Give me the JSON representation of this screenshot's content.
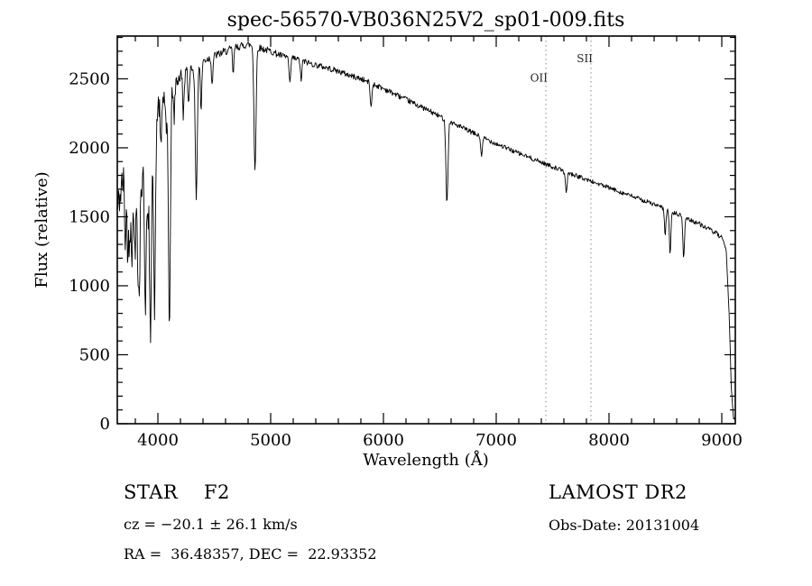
{
  "title": "spec-56570-VB036N25V2_sp01-009.fits",
  "chart_data": {
    "type": "line",
    "title": "spec-56570-VB036N25V2_sp01-009.fits",
    "xlabel": "Wavelength (Å)",
    "ylabel": "Flux (relative)",
    "xlim": [
      3640,
      9120
    ],
    "ylim": [
      0,
      2810
    ],
    "x_major_ticks": [
      4000,
      5000,
      6000,
      7000,
      8000,
      9000
    ],
    "x_minor_step": 200,
    "y_major_ticks": [
      0,
      500,
      1000,
      1500,
      2000,
      2500
    ],
    "y_minor_step": 100,
    "line_color": "#000000",
    "grid": false,
    "markers": [
      {
        "label": "OII",
        "wavelength": 7440,
        "label_flux": 2480
      },
      {
        "label": "SII",
        "wavelength": 7840,
        "label_flux": 2620
      }
    ],
    "continuum": [
      [
        3640,
        1550
      ],
      [
        3700,
        1800
      ],
      [
        3760,
        1950
      ],
      [
        3820,
        2060
      ],
      [
        3880,
        2130
      ],
      [
        3940,
        2190
      ],
      [
        4000,
        2300
      ],
      [
        4060,
        2370
      ],
      [
        4120,
        2440
      ],
      [
        4200,
        2520
      ],
      [
        4300,
        2580
      ],
      [
        4400,
        2630
      ],
      [
        4500,
        2665
      ],
      [
        4600,
        2700
      ],
      [
        4700,
        2730
      ],
      [
        4800,
        2750
      ],
      [
        4900,
        2725
      ],
      [
        5000,
        2700
      ],
      [
        5100,
        2665
      ],
      [
        5200,
        2650
      ],
      [
        5300,
        2625
      ],
      [
        5400,
        2600
      ],
      [
        5500,
        2580
      ],
      [
        5600,
        2555
      ],
      [
        5700,
        2525
      ],
      [
        5800,
        2500
      ],
      [
        5900,
        2465
      ],
      [
        6000,
        2430
      ],
      [
        6200,
        2350
      ],
      [
        6400,
        2270
      ],
      [
        6600,
        2185
      ],
      [
        6800,
        2105
      ],
      [
        7000,
        2030
      ],
      [
        7200,
        1960
      ],
      [
        7400,
        1895
      ],
      [
        7600,
        1830
      ],
      [
        7800,
        1770
      ],
      [
        8000,
        1710
      ],
      [
        8200,
        1650
      ],
      [
        8400,
        1590
      ],
      [
        8600,
        1520
      ],
      [
        8800,
        1450
      ],
      [
        8950,
        1380
      ],
      [
        9000,
        1345
      ],
      [
        9040,
        1250
      ],
      [
        9065,
        800
      ],
      [
        9085,
        250
      ],
      [
        9105,
        40
      ],
      [
        9120,
        20
      ]
    ],
    "absorption_lines": [
      [
        3712,
        500,
        7
      ],
      [
        3734,
        650,
        7
      ],
      [
        3750,
        550,
        6
      ],
      [
        3771,
        750,
        8
      ],
      [
        3798,
        850,
        8
      ],
      [
        3820,
        600,
        6
      ],
      [
        3835,
        1150,
        8
      ],
      [
        3860,
        500,
        6
      ],
      [
        3889,
        1250,
        9
      ],
      [
        3910,
        600,
        6
      ],
      [
        3933,
        1550,
        9
      ],
      [
        3970,
        1400,
        9
      ],
      [
        4026,
        350,
        6
      ],
      [
        4075,
        300,
        6
      ],
      [
        4102,
        1680,
        9
      ],
      [
        4144,
        250,
        6
      ],
      [
        4226,
        300,
        6
      ],
      [
        4272,
        250,
        6
      ],
      [
        4340,
        950,
        9
      ],
      [
        4383,
        350,
        6
      ],
      [
        4481,
        200,
        6
      ],
      [
        4668,
        180,
        6
      ],
      [
        4861,
        900,
        9
      ],
      [
        5170,
        200,
        7
      ],
      [
        5270,
        150,
        6
      ],
      [
        5890,
        180,
        7
      ],
      [
        6563,
        600,
        9
      ],
      [
        6870,
        130,
        8
      ],
      [
        7620,
        140,
        8
      ],
      [
        8498,
        180,
        7
      ],
      [
        8542,
        300,
        7
      ],
      [
        8662,
        300,
        7
      ]
    ],
    "noise_profile": [
      [
        3640,
        140
      ],
      [
        3900,
        125
      ],
      [
        4050,
        90
      ],
      [
        4200,
        55
      ],
      [
        4400,
        32
      ],
      [
        4800,
        26
      ],
      [
        5400,
        22
      ],
      [
        6000,
        20
      ],
      [
        6800,
        18
      ],
      [
        7600,
        16
      ],
      [
        8400,
        16
      ],
      [
        9000,
        18
      ],
      [
        9120,
        8
      ]
    ],
    "noise_seed": 42,
    "sample_step": 5
  },
  "annotations": {
    "class_label": "STAR    F2",
    "cz": "cz = −20.1 ± 26.1 km/s",
    "radec": "RA =  36.48357, DEC =  22.93352",
    "survey": "LAMOST DR2",
    "obs_date": "Obs-Date: 20131004"
  }
}
